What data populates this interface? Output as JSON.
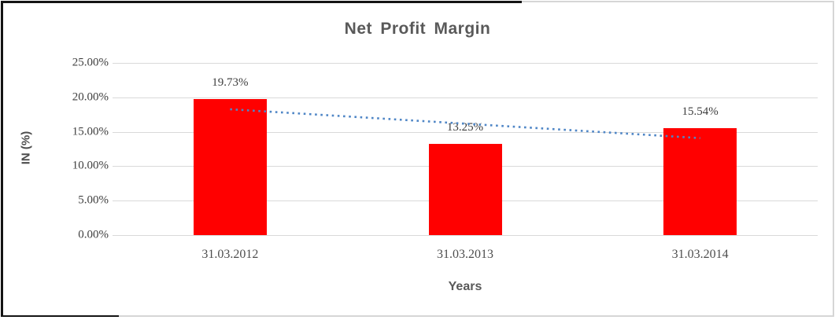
{
  "chart_data": {
    "type": "bar",
    "title": "Net Profit Margin",
    "xlabel": "Years",
    "ylabel": "IN (%)",
    "categories": [
      "31.03.2012",
      "31.03.2013",
      "31.03.2014"
    ],
    "values": [
      19.73,
      13.25,
      15.54
    ],
    "data_labels": [
      "19.73%",
      "13.25%",
      "15.54%"
    ],
    "yticks": [
      "25.00%",
      "20.00%",
      "15.00%",
      "10.00%",
      "5.00%",
      "0.00%"
    ],
    "ylim": [
      0,
      25
    ],
    "grid": "horizontal",
    "legend": "none",
    "bar_color": "#FF0000",
    "trendline": {
      "type": "linear",
      "style": "dotted",
      "color": "#4F86C6",
      "start_value": 18.27,
      "end_value": 14.08
    }
  },
  "colors": {
    "title_text": "#595959",
    "axis_text": "#404040",
    "gridline": "#D9D9D9",
    "frame_border_gray": "#D6D6D6",
    "frame_border_black": "#141414"
  }
}
